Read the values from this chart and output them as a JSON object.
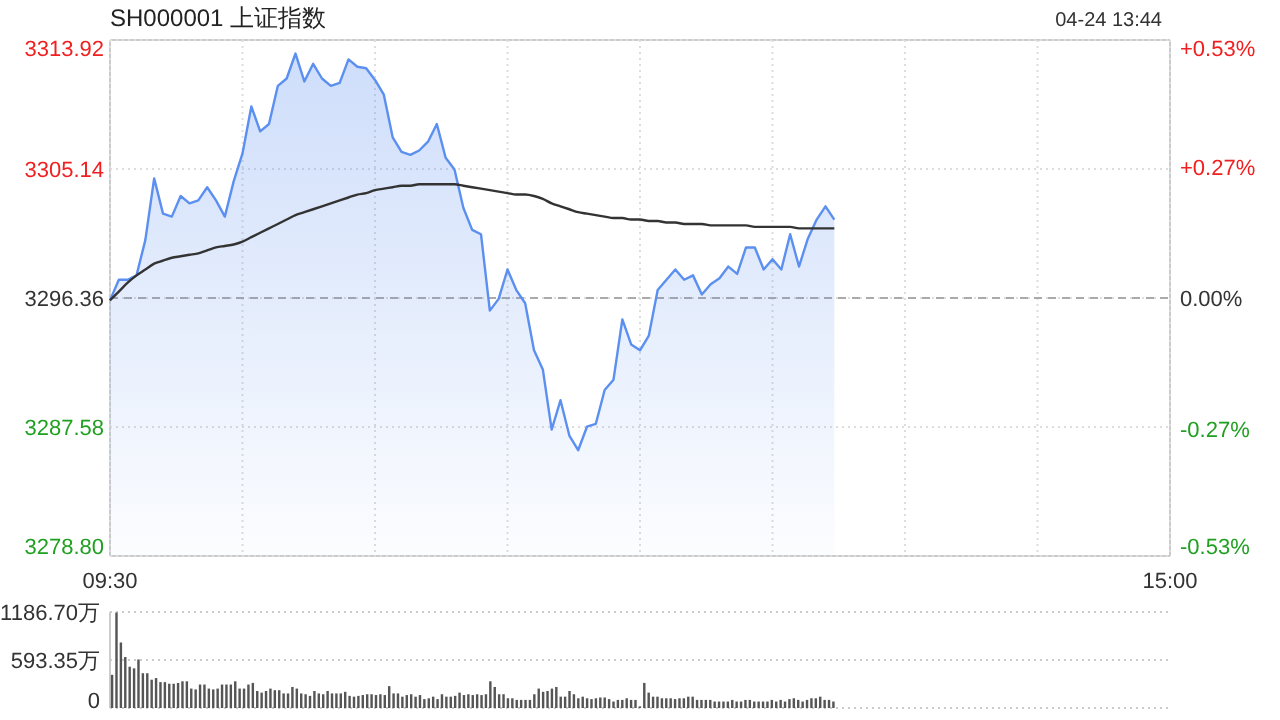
{
  "chart_data": [
    {
      "type": "area",
      "title": "SH000001 上证指数",
      "annotations": [
        "04-24 13:44"
      ],
      "categories": [
        "09:30",
        null,
        null,
        null,
        null,
        null,
        null,
        null,
        null,
        null,
        null,
        null,
        null,
        null,
        null,
        null,
        null,
        null,
        null,
        null,
        null,
        null,
        null,
        null,
        null,
        null,
        null,
        null,
        null,
        null,
        null,
        null,
        null,
        null,
        null,
        null,
        null,
        null,
        null,
        null,
        null,
        null,
        null,
        null,
        null,
        null,
        null,
        null,
        null,
        null,
        null,
        null,
        null,
        null,
        null,
        null,
        null,
        null,
        null,
        null,
        null,
        null,
        null,
        null,
        null,
        null,
        null,
        null,
        null,
        null,
        null,
        null,
        null,
        null,
        null,
        null,
        null,
        null,
        null,
        null,
        null,
        null,
        null,
        null,
        null,
        null,
        null,
        null,
        null,
        null,
        null,
        null,
        null,
        null,
        null,
        null,
        null,
        null,
        null,
        null,
        null,
        null,
        null,
        null,
        null,
        null,
        null,
        null,
        null,
        null,
        null,
        null,
        null,
        null,
        null,
        null,
        null,
        null,
        null,
        null,
        "15:00"
      ],
      "ylim": [
        3278.8,
        3313.92
      ],
      "yticks": [
        {
          "value": 3278.8,
          "label": "3278.80"
        },
        3287.58,
        3296.36,
        3305.14,
        3313.92
      ],
      "y2lim": [
        -0.53,
        0.53
      ],
      "y2ticks": [
        {
          "value": -0.53,
          "label": "-0.53%"
        },
        {
          "value": -0.27,
          "label": "-0.27%"
        },
        {
          "value": 0,
          "label": "0.00%"
        },
        {
          "value": 0.27,
          "label": "+0.27%"
        },
        {
          "value": 0.53,
          "label": "+0.53%"
        }
      ],
      "grid": true,
      "ref_lines": [
        {
          "axis": "y",
          "value": 3296.36,
          "line_style": "dashed",
          "color": "#aaaaaa"
        }
      ],
      "series": [
        {
          "color": "#5b8ff0",
          "values": [
            3296.2,
            3297.6,
            3297.6,
            3297.9,
            3300.3,
            3304.5,
            3302.1,
            3301.9,
            3303.3,
            3302.8,
            3303.0,
            3303.9,
            3303.0,
            3301.9,
            3304.3,
            3306.2,
            3309.4,
            3307.7,
            3308.2,
            3310.8,
            3311.3,
            3313.0,
            3311.1,
            3312.3,
            3311.3,
            3310.8,
            3311.0,
            3312.6,
            3312.1,
            3312.0,
            3311.2,
            3310.2,
            3307.3,
            3306.3,
            3306.1,
            3306.4,
            3307.0,
            3308.2,
            3305.9,
            3305.1,
            3302.5,
            3301.0,
            3300.7,
            3295.5,
            3296.3,
            3298.3,
            3296.9,
            3296.0,
            3292.8,
            3291.5,
            3287.4,
            3289.4,
            3287.0,
            3286.0,
            3287.6,
            3287.8,
            3290.1,
            3290.8,
            3294.9,
            3293.2,
            3292.8,
            3293.8,
            3296.9,
            3297.6,
            3298.3,
            3297.6,
            3297.9,
            3296.6,
            3297.3,
            3297.7,
            3298.5,
            3298.0,
            3299.8,
            3299.8,
            3298.3,
            3299.0,
            3298.3,
            3300.7,
            3298.5,
            3300.4,
            3301.7,
            3302.6,
            3301.7,
            null,
            null,
            null,
            null,
            null,
            null,
            null,
            null,
            null,
            null,
            null,
            null,
            null,
            null,
            null,
            null,
            null,
            null,
            null,
            null,
            null,
            null,
            null,
            null,
            null,
            null,
            null,
            null,
            null,
            null,
            null,
            null,
            null,
            null,
            null,
            null,
            null,
            null
          ]
        },
        {
          "type": "line",
          "color": "#333333",
          "values": [
            3296.2,
            3296.8,
            3297.4,
            3297.9,
            3298.3,
            3298.7,
            3298.9,
            3299.1,
            3299.2,
            3299.3,
            3299.4,
            3299.6,
            3299.8,
            3299.9,
            3300.0,
            3300.2,
            3300.5,
            3300.8,
            3301.1,
            3301.4,
            3301.7,
            3302.0,
            3302.2,
            3302.4,
            3302.6,
            3302.8,
            3303.0,
            3303.2,
            3303.4,
            3303.5,
            3303.7,
            3303.8,
            3303.9,
            3304.0,
            3304.0,
            3304.1,
            3304.1,
            3304.1,
            3304.1,
            3304.1,
            3304.0,
            3303.9,
            3303.8,
            3303.7,
            3303.6,
            3303.5,
            3303.4,
            3303.4,
            3303.3,
            3303.1,
            3302.8,
            3302.6,
            3302.4,
            3302.2,
            3302.1,
            3302.0,
            3301.9,
            3301.8,
            3301.8,
            3301.7,
            3301.7,
            3301.6,
            3301.6,
            3301.5,
            3301.5,
            3301.4,
            3301.4,
            3301.4,
            3301.3,
            3301.3,
            3301.3,
            3301.3,
            3301.3,
            3301.2,
            3301.2,
            3301.2,
            3301.2,
            3301.2,
            3301.1,
            3301.1,
            3301.1,
            3301.1,
            3301.1,
            null,
            null,
            null,
            null,
            null,
            null,
            null,
            null,
            null,
            null,
            null,
            null,
            null,
            null,
            null,
            null,
            null,
            null,
            null,
            null,
            null,
            null,
            null,
            null,
            null,
            null,
            null,
            null,
            null,
            null,
            null,
            null,
            null,
            null,
            null,
            null,
            null,
            null
          ]
        }
      ]
    },
    {
      "type": "bar",
      "color": "#555555",
      "tick_labels": "y",
      "grid": "y",
      "categories": [
        null,
        null,
        null,
        null,
        null,
        null,
        null,
        null,
        null,
        null,
        null,
        null,
        null,
        null,
        null,
        null,
        null,
        null,
        null,
        null,
        null,
        null,
        null,
        null,
        null,
        null,
        null,
        null,
        null,
        null,
        null,
        null,
        null,
        null,
        null,
        null,
        null,
        null,
        null,
        null,
        null,
        null,
        null,
        null,
        null,
        null,
        null,
        null,
        null,
        null,
        null,
        null,
        null,
        null,
        null,
        null,
        null,
        null,
        null,
        null,
        null,
        null,
        null,
        null,
        null,
        null,
        null,
        null,
        null,
        null,
        null,
        null,
        null,
        null,
        null,
        null,
        null,
        null,
        null,
        null,
        null,
        null,
        null,
        null,
        null,
        null,
        null,
        null,
        null,
        null,
        null,
        null,
        null,
        null,
        null,
        null,
        null,
        null,
        null,
        null,
        null,
        null,
        null,
        null,
        null,
        null,
        null,
        null,
        null,
        null,
        null,
        null,
        null,
        null,
        null,
        null,
        null,
        null,
        null,
        null,
        null,
        null,
        null,
        null,
        null,
        null,
        null,
        null,
        null,
        null,
        null,
        null,
        null,
        null,
        null,
        null,
        null,
        null,
        null,
        null,
        null,
        null,
        null,
        null,
        null,
        null,
        null,
        null,
        null,
        null,
        null,
        null,
        null,
        null,
        null,
        null,
        null,
        null,
        null,
        null,
        null,
        null,
        null,
        null,
        null,
        null,
        null,
        null,
        null,
        null,
        null,
        null,
        null,
        null,
        null,
        null,
        null,
        null,
        null,
        null,
        null,
        null,
        null,
        null,
        null,
        null,
        null,
        null,
        null,
        null,
        null,
        null,
        null,
        null,
        null,
        null,
        null,
        null,
        null,
        null,
        null,
        null,
        null,
        null,
        null,
        null,
        null,
        null,
        null,
        null,
        null,
        null,
        null,
        null,
        null,
        null,
        null,
        null,
        null,
        null,
        null,
        null,
        null,
        null,
        null,
        null,
        null,
        null,
        null,
        null,
        null,
        null,
        null,
        null,
        null,
        null,
        null,
        null,
        null,
        null,
        null
      ],
      "ylim": [
        0,
        1186.7
      ],
      "yticks": [
        0,
        {
          "value": 593.35,
          "label": "593.35万"
        },
        {
          "value": 1186.7,
          "label": "1186.70万"
        }
      ],
      "values": [
        410,
        1180,
        810,
        630,
        510,
        490,
        600,
        430,
        430,
        350,
        370,
        320,
        320,
        300,
        300,
        310,
        330,
        330,
        240,
        230,
        290,
        290,
        240,
        230,
        240,
        290,
        290,
        290,
        330,
        240,
        240,
        290,
        310,
        210,
        190,
        210,
        240,
        220,
        220,
        180,
        180,
        260,
        240,
        180,
        170,
        150,
        210,
        180,
        170,
        210,
        180,
        180,
        180,
        200,
        150,
        140,
        150,
        160,
        170,
        170,
        160,
        170,
        160,
        270,
        180,
        180,
        140,
        160,
        170,
        140,
        160,
        110,
        120,
        140,
        110,
        170,
        140,
        140,
        150,
        190,
        160,
        170,
        160,
        170,
        160,
        170,
        330,
        260,
        170,
        170,
        120,
        120,
        100,
        100,
        100,
        100,
        170,
        240,
        200,
        210,
        240,
        260,
        140,
        140,
        210,
        170,
        120,
        140,
        120,
        110,
        120,
        130,
        130,
        110,
        80,
        100,
        100,
        120,
        100,
        100,
        20,
        310,
        190,
        140,
        140,
        120,
        120,
        120,
        110,
        120,
        120,
        140,
        140,
        100,
        100,
        100,
        100,
        80,
        80,
        80,
        80,
        100,
        80,
        80,
        100,
        100,
        80,
        80,
        80,
        80,
        100,
        80,
        100,
        80,
        110,
        120,
        100,
        80,
        100,
        120,
        120,
        140,
        100,
        100,
        80,
        null,
        null,
        null,
        null,
        null,
        null,
        null,
        null,
        null,
        null,
        null,
        null,
        null,
        null,
        null,
        null,
        null,
        null,
        null,
        null,
        null,
        null,
        null,
        null,
        null,
        null,
        null,
        null,
        null,
        null,
        null,
        null,
        null,
        null,
        null,
        null,
        null,
        null,
        null,
        null,
        null,
        null,
        null,
        null,
        null,
        null,
        null,
        null,
        null,
        null,
        null,
        null,
        null,
        null,
        null,
        null,
        null,
        null,
        null,
        null,
        null,
        null,
        null,
        null,
        null,
        null,
        null,
        null,
        null,
        null,
        null,
        null,
        null,
        null,
        null,
        null
      ]
    }
  ]
}
